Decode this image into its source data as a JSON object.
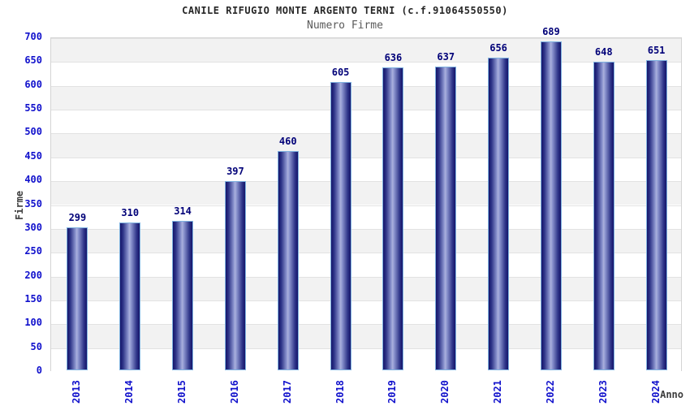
{
  "chart_data": {
    "type": "bar",
    "title": "CANILE RIFUGIO MONTE ARGENTO TERNI (c.f.91064550550)",
    "subtitle": "Numero Firme",
    "xlabel": "Anno",
    "ylabel": "Firme",
    "categories": [
      "2013",
      "2014",
      "2015",
      "2016",
      "2017",
      "2018",
      "2019",
      "2020",
      "2021",
      "2022",
      "2023",
      "2024"
    ],
    "values": [
      299,
      310,
      314,
      397,
      460,
      605,
      636,
      637,
      656,
      689,
      648,
      651
    ],
    "ylim": [
      0,
      700
    ],
    "ytick_step": 50,
    "grid": true,
    "legend": false,
    "band_colors": [
      "#f2f2f2",
      "#ffffff"
    ]
  },
  "colors": {
    "tick_label": "#1111cc",
    "value_label": "#000078",
    "gridline": "#e2e2e2",
    "plot_border": "#d4d4d4",
    "bar_dark": "#15156a",
    "bar_light": "#aab0dd",
    "bar_border": "#7fb2e0",
    "title": "#262626",
    "subtitle": "#5a5a5a",
    "axis_title": "#3d3d3d"
  }
}
